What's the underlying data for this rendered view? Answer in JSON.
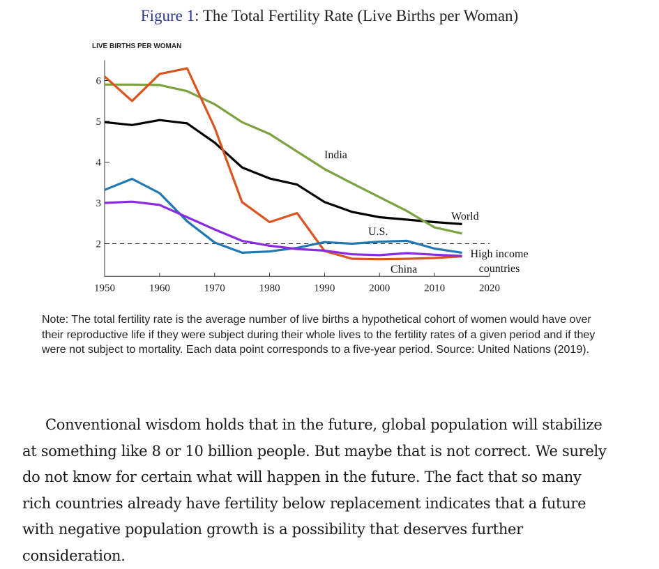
{
  "figure": {
    "label": "Figure 1",
    "title": ": The Total Fertility Rate (Live Births per Woman)"
  },
  "chart_data": {
    "type": "line",
    "title": "The Total Fertility Rate (Live Births per Woman)",
    "ylabel": "LIVE BIRTHS PER WOMAN",
    "xlabel": "",
    "xlim": [
      1950,
      2020
    ],
    "ylim": [
      1.2,
      6.5
    ],
    "xticks": [
      1950,
      1960,
      1970,
      1980,
      1990,
      2000,
      2010,
      2020
    ],
    "yticks": [
      2,
      3,
      4,
      5,
      6
    ],
    "reference_line": {
      "y": 2.0,
      "style": "dashed"
    },
    "x": [
      1950,
      1955,
      1960,
      1965,
      1970,
      1975,
      1980,
      1985,
      1990,
      1995,
      2000,
      2005,
      2010,
      2015
    ],
    "series": [
      {
        "name": "World",
        "color": "#000000",
        "label": "World",
        "values": [
          4.98,
          4.91,
          5.03,
          4.95,
          4.48,
          3.87,
          3.6,
          3.45,
          3.02,
          2.78,
          2.65,
          2.59,
          2.53,
          2.48
        ]
      },
      {
        "name": "India",
        "color": "#7ba23f",
        "label": "India",
        "values": [
          5.9,
          5.9,
          5.89,
          5.74,
          5.42,
          4.98,
          4.69,
          4.26,
          3.83,
          3.48,
          3.14,
          2.8,
          2.4,
          2.25
        ]
      },
      {
        "name": "China",
        "color": "#d9541f",
        "label": "China",
        "values": [
          6.1,
          5.5,
          6.16,
          6.3,
          4.85,
          3.02,
          2.53,
          2.75,
          1.82,
          1.63,
          1.62,
          1.63,
          1.65,
          1.69
        ]
      },
      {
        "name": "U.S.",
        "color": "#1f77b4",
        "label": "U.S.",
        "values": [
          3.32,
          3.59,
          3.24,
          2.55,
          2.03,
          1.78,
          1.81,
          1.9,
          2.04,
          2.0,
          2.05,
          2.07,
          1.88,
          1.78
        ]
      },
      {
        "name": "High income countries",
        "color": "#8a2be2",
        "label_lines": [
          "High income",
          "countries"
        ],
        "values": [
          3.0,
          3.03,
          2.95,
          2.65,
          2.35,
          2.07,
          1.95,
          1.87,
          1.83,
          1.74,
          1.72,
          1.77,
          1.73,
          1.7
        ]
      }
    ]
  },
  "note": "Note: The total fertility rate is the average number of live births a hypothetical cohort of women would have over their reproductive life if they were subject during their whole lives to the fertility rates of a given period and if they were not subject to mortality. Each data point corresponds to a five-year period. Source: United Nations (2019).",
  "paragraph": "Conventional wisdom holds that in the future, global population will stabilize at something like 8 or 10 billion people. But maybe that is not correct. We surely do not know for certain what will happen in the future. The fact that so many rich countries already have fertility below replacement indicates that a future with negative population growth is a possibility that deserves further consideration."
}
